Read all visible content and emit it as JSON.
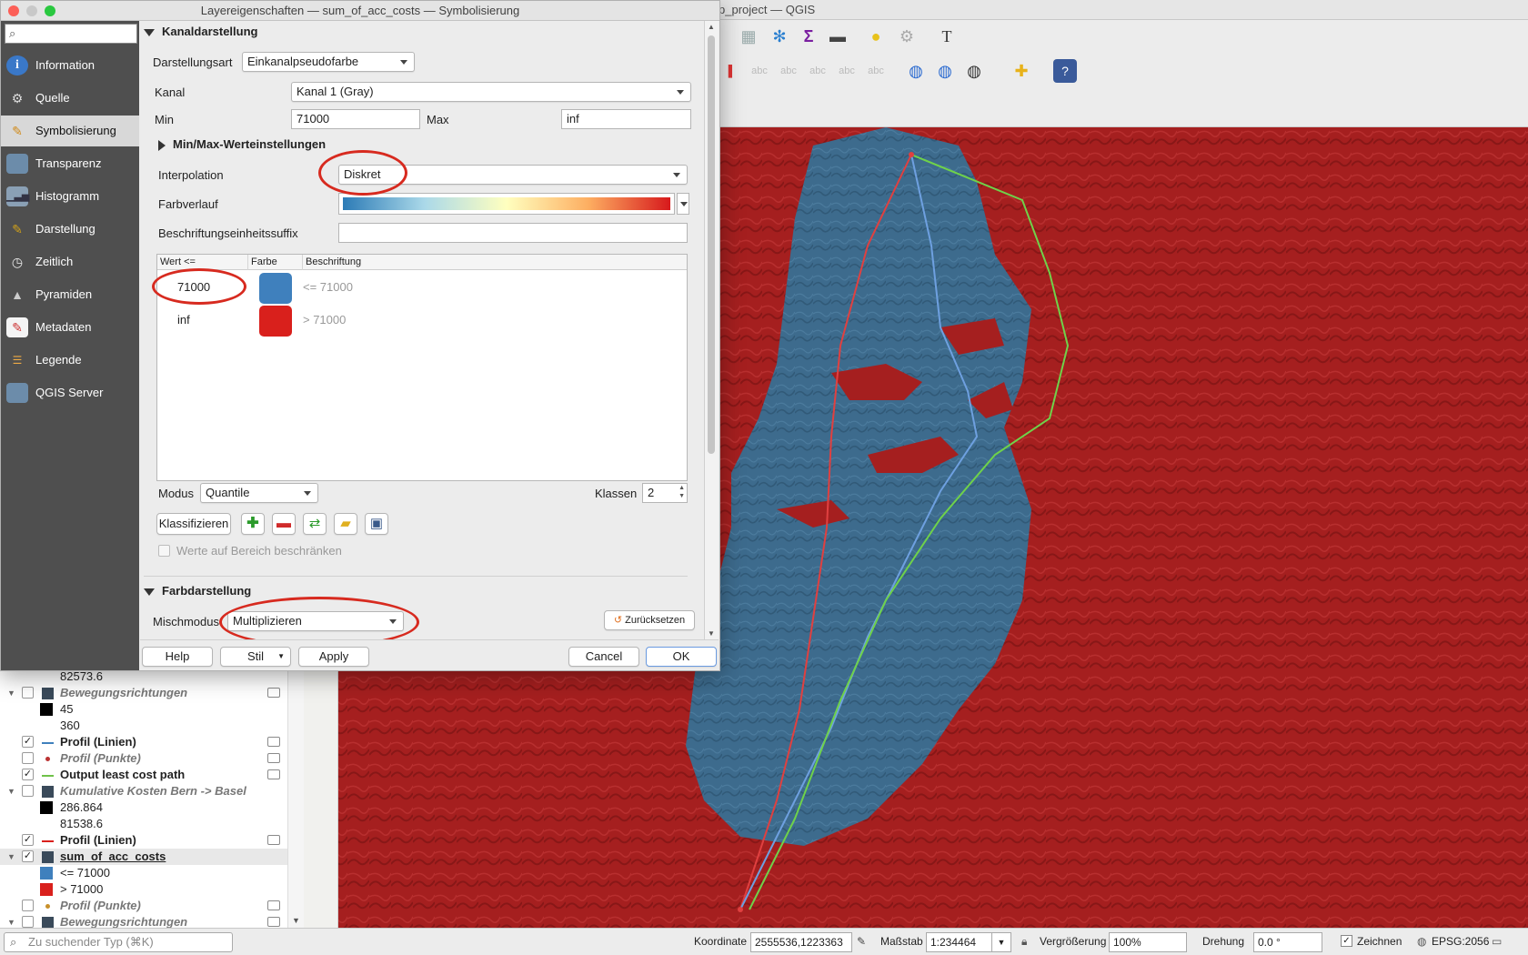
{
  "main_window": {
    "title": "p_project — QGIS"
  },
  "dialog": {
    "title": "Layereigenschaften — sum_of_acc_costs — Symbolisierung",
    "search_placeholder": "",
    "sidebar": [
      {
        "label": "Information",
        "icon": "info-icon",
        "active": false
      },
      {
        "label": "Quelle",
        "icon": "source-icon",
        "active": false
      },
      {
        "label": "Symbolisierung",
        "icon": "paintbrush-icon",
        "active": true
      },
      {
        "label": "Transparenz",
        "icon": "transparency-icon",
        "active": false
      },
      {
        "label": "Histogramm",
        "icon": "histogram-icon",
        "active": false
      },
      {
        "label": "Darstellung",
        "icon": "rendering-icon",
        "active": false
      },
      {
        "label": "Zeitlich",
        "icon": "clock-icon",
        "active": false
      },
      {
        "label": "Pyramiden",
        "icon": "pyramid-icon",
        "active": false
      },
      {
        "label": "Metadaten",
        "icon": "metadata-icon",
        "active": false
      },
      {
        "label": "Legende",
        "icon": "legend-icon",
        "active": false
      },
      {
        "label": "QGIS Server",
        "icon": "server-icon",
        "active": false
      }
    ],
    "band_rendering": {
      "header": "Kanaldarstellung",
      "render_type_label": "Darstellungsart",
      "render_type_value": "Einkanalpseudofarbe",
      "band_label": "Kanal",
      "band_value": "Kanal 1 (Gray)",
      "min_label": "Min",
      "min_value": "71000",
      "max_label": "Max",
      "max_value": "inf",
      "minmax_settings": "Min/Max-Werteinstellungen",
      "interpolation_label": "Interpolation",
      "interpolation_value": "Diskret",
      "color_ramp_label": "Farbverlauf",
      "label_unit_suffix_label": "Beschriftungseinheitssuffix",
      "label_unit_suffix_value": "",
      "table_headers": [
        "Wert <=",
        "Farbe",
        "Beschriftung"
      ],
      "classes": [
        {
          "value": "71000",
          "color": "#3f80bd",
          "label": "<= 71000"
        },
        {
          "value": "inf",
          "color": "#d9201c",
          "label": "> 71000"
        }
      ],
      "mode_label": "Modus",
      "mode_value": "Quantile",
      "classes_label": "Klassen",
      "classes_count": "2",
      "classify_button": "Klassifizieren",
      "clip_checkbox": "Werte auf Bereich beschränken"
    },
    "color_rendering": {
      "header": "Farbdarstellung",
      "blend_mode_label": "Mischmodus",
      "blend_mode_value": "Multiplizieren",
      "reset_button": "Zurücksetzen"
    },
    "buttons": {
      "help": "Help",
      "style": "Stil",
      "apply": "Apply",
      "cancel": "Cancel",
      "ok": "OK"
    }
  },
  "layers": [
    {
      "kind": "legend-text",
      "text": "82573.6"
    },
    {
      "kind": "layer",
      "name": "Bewegungsrichtungen",
      "checked": false,
      "style": "italic",
      "expanded": true,
      "icon": "raster-icon"
    },
    {
      "kind": "legend",
      "color": "#000000",
      "text": "45"
    },
    {
      "kind": "legend-text",
      "text": "360"
    },
    {
      "kind": "layer",
      "name": "Profil (Linien)",
      "checked": true,
      "style": "bold",
      "icon": "line-blue-icon"
    },
    {
      "kind": "layer",
      "name": "Profil (Punkte)",
      "checked": false,
      "style": "italic",
      "icon": "point-red-icon"
    },
    {
      "kind": "layer",
      "name": "Output least cost path",
      "checked": true,
      "style": "bold",
      "icon": "line-green-icon"
    },
    {
      "kind": "layer",
      "name": "Kumulative Kosten Bern -> Basel",
      "checked": false,
      "style": "italic",
      "expanded": true,
      "icon": "raster-icon"
    },
    {
      "kind": "legend",
      "color": "#000000",
      "text": "286.864"
    },
    {
      "kind": "legend-text",
      "text": "81538.6"
    },
    {
      "kind": "layer",
      "name": "Profil (Linien)",
      "checked": true,
      "style": "bold",
      "icon": "line-red-icon"
    },
    {
      "kind": "layer",
      "name": "sum_of_acc_costs",
      "checked": true,
      "style": "bold-underline",
      "expanded": true,
      "selected": true,
      "icon": "raster-icon"
    },
    {
      "kind": "legend",
      "color": "#3f80bd",
      "text": "<= 71000"
    },
    {
      "kind": "legend",
      "color": "#d9201c",
      "text": "> 71000"
    },
    {
      "kind": "layer",
      "name": "Profil (Punkte)",
      "checked": false,
      "style": "italic",
      "icon": "point-orange-icon"
    },
    {
      "kind": "layer",
      "name": "Bewegungsrichtungen",
      "checked": false,
      "style": "italic",
      "expanded": true,
      "icon": "raster-icon"
    }
  ],
  "statusbar": {
    "locator_placeholder": "Zu suchender Typ (⌘K)",
    "coordinate_label": "Koordinate",
    "coordinate_value": "2555536,1223363",
    "scale_label": "Maßstab",
    "scale_value": "1:234464",
    "magnifier_label": "Vergrößerung",
    "magnifier_value": "100%",
    "rotation_label": "Drehung",
    "rotation_value": "0.0 °",
    "render_label": "Zeichnen",
    "crs_label": "EPSG:2056"
  }
}
